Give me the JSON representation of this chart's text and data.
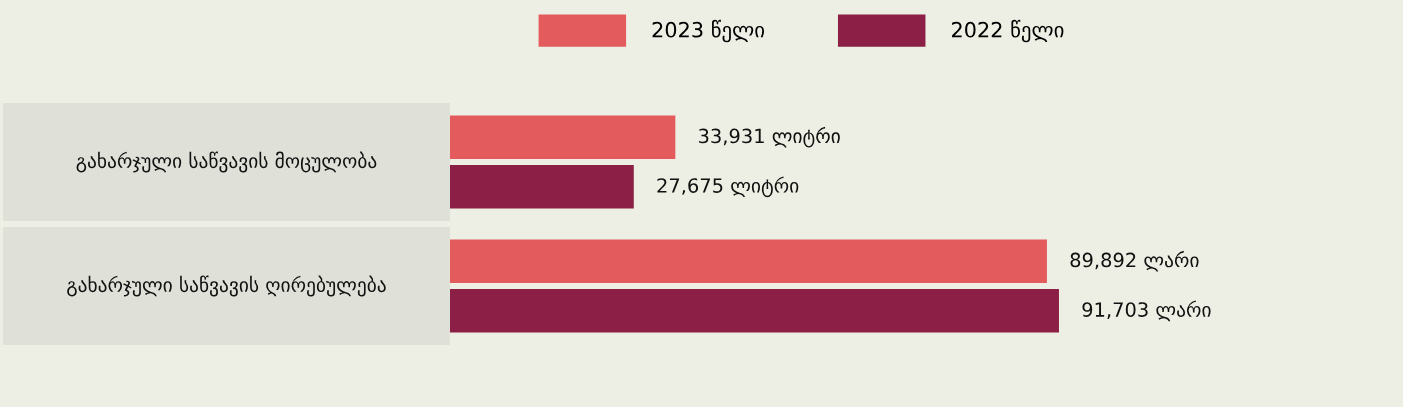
{
  "chart_data": {
    "type": "bar",
    "orientation": "horizontal",
    "categories": [
      "გახარჯული საწვავის მოცულობა",
      "გახარჯული საწვავის ღირებულება"
    ],
    "series": [
      {
        "name": "2023 წელი",
        "color": "#e35b5c",
        "values": [
          33931,
          89892
        ],
        "value_labels": [
          "33,931 ლიტრი",
          "89,892 ლარი"
        ]
      },
      {
        "name": "2022 წელი",
        "color": "#8b1f45",
        "values": [
          27675,
          91703
        ],
        "value_labels": [
          "27,675 ლიტრი",
          "91,703 ლარი"
        ]
      }
    ],
    "legend": "top"
  }
}
